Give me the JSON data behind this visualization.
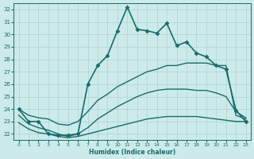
{
  "xlabel": "Humidex (Indice chaleur)",
  "background_color": "#cceaea",
  "grid_color": "#aad4d4",
  "line_color": "#1a6b6b",
  "xlim": [
    -0.5,
    23.5
  ],
  "ylim": [
    21.5,
    32.5
  ],
  "xticks": [
    0,
    1,
    2,
    3,
    4,
    5,
    6,
    7,
    8,
    9,
    10,
    11,
    12,
    13,
    14,
    15,
    16,
    17,
    18,
    19,
    20,
    21,
    22,
    23
  ],
  "yticks": [
    22,
    23,
    24,
    25,
    26,
    27,
    28,
    29,
    30,
    31,
    32
  ],
  "lines": [
    {
      "x": [
        0,
        1,
        2,
        3,
        4,
        5,
        6,
        7,
        8,
        9,
        10,
        11,
        12,
        13,
        14,
        15,
        16,
        17,
        18,
        19,
        20,
        21,
        22,
        23
      ],
      "y": [
        24.0,
        23.0,
        23.0,
        22.0,
        21.9,
        21.9,
        22.0,
        26.0,
        27.5,
        28.3,
        30.3,
        32.2,
        30.4,
        30.3,
        30.1,
        30.9,
        29.1,
        29.4,
        28.5,
        28.2,
        27.5,
        27.2,
        23.9,
        23.0
      ],
      "marker": "D",
      "linewidth": 1.2,
      "markersize": 2.5
    },
    {
      "x": [
        0,
        1,
        2,
        3,
        4,
        5,
        6,
        7,
        8,
        9,
        10,
        11,
        12,
        13,
        14,
        15,
        16,
        17,
        18,
        19,
        20,
        21,
        22,
        23
      ],
      "y": [
        24.0,
        23.5,
        23.3,
        23.2,
        22.8,
        22.7,
        23.0,
        23.8,
        24.7,
        25.2,
        25.8,
        26.2,
        26.6,
        27.0,
        27.2,
        27.5,
        27.5,
        27.7,
        27.7,
        27.7,
        27.5,
        27.5,
        23.5,
        23.2
      ],
      "marker": null,
      "linewidth": 1.0,
      "markersize": 0
    },
    {
      "x": [
        0,
        1,
        2,
        3,
        4,
        5,
        6,
        7,
        8,
        9,
        10,
        11,
        12,
        13,
        14,
        15,
        16,
        17,
        18,
        19,
        20,
        21,
        22,
        23
      ],
      "y": [
        23.5,
        22.8,
        22.5,
        22.3,
        22.0,
        21.8,
        22.0,
        22.5,
        23.2,
        23.7,
        24.2,
        24.6,
        25.0,
        25.3,
        25.5,
        25.6,
        25.6,
        25.6,
        25.5,
        25.5,
        25.3,
        25.0,
        23.8,
        23.3
      ],
      "marker": null,
      "linewidth": 1.0,
      "markersize": 0
    },
    {
      "x": [
        0,
        1,
        2,
        3,
        4,
        5,
        6,
        7,
        8,
        9,
        10,
        11,
        12,
        13,
        14,
        15,
        16,
        17,
        18,
        19,
        20,
        21,
        22,
        23
      ],
      "y": [
        22.9,
        22.4,
        22.1,
        22.0,
        21.8,
        21.7,
        21.8,
        22.0,
        22.2,
        22.4,
        22.6,
        22.8,
        23.0,
        23.2,
        23.3,
        23.4,
        23.4,
        23.4,
        23.4,
        23.3,
        23.2,
        23.1,
        23.0,
        23.0
      ],
      "marker": null,
      "linewidth": 1.0,
      "markersize": 0
    }
  ]
}
